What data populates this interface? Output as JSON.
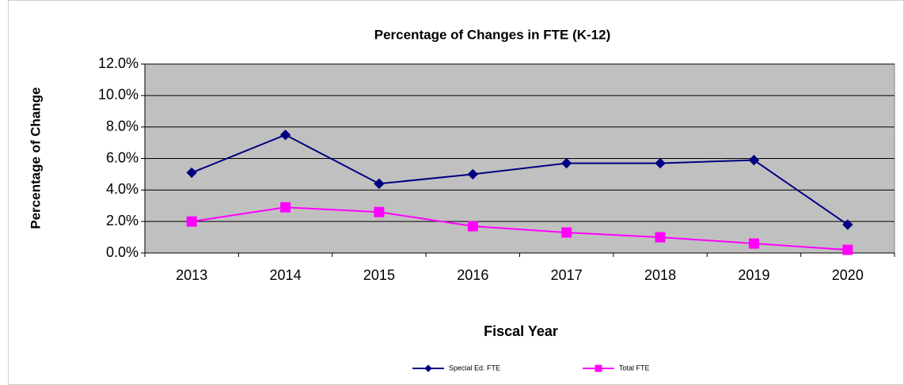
{
  "chart_data": {
    "type": "line",
    "title": "Percentage of Changes in FTE  (K-12)",
    "x_label": "Fiscal Year",
    "y_label": "Percentage of Change",
    "categories": [
      "2013",
      "2014",
      "2015",
      "2016",
      "2017",
      "2018",
      "2019",
      "2020"
    ],
    "series": [
      {
        "name": "Special Ed. FTE",
        "color": "#000080",
        "marker": "diamond",
        "values": [
          5.1,
          7.5,
          4.4,
          5.0,
          5.7,
          5.7,
          5.9,
          1.8
        ]
      },
      {
        "name": "Total FTE",
        "color": "#ff00ff",
        "marker": "square",
        "values": [
          2.0,
          2.9,
          2.6,
          1.7,
          1.3,
          1.0,
          0.6,
          0.2
        ]
      }
    ],
    "ylim": [
      0,
      12
    ],
    "yticks": [
      {
        "value": 0,
        "label": "0.0%"
      },
      {
        "value": 2,
        "label": "2.0%"
      },
      {
        "value": 4,
        "label": "4.0%"
      },
      {
        "value": 6,
        "label": "6.0%"
      },
      {
        "value": 8,
        "label": "8.0%"
      },
      {
        "value": 10,
        "label": "10.0%"
      },
      {
        "value": 12,
        "label": "12.0%"
      }
    ],
    "grid": true,
    "plot_background": "#c0c0c0",
    "legend": "bottom"
  }
}
